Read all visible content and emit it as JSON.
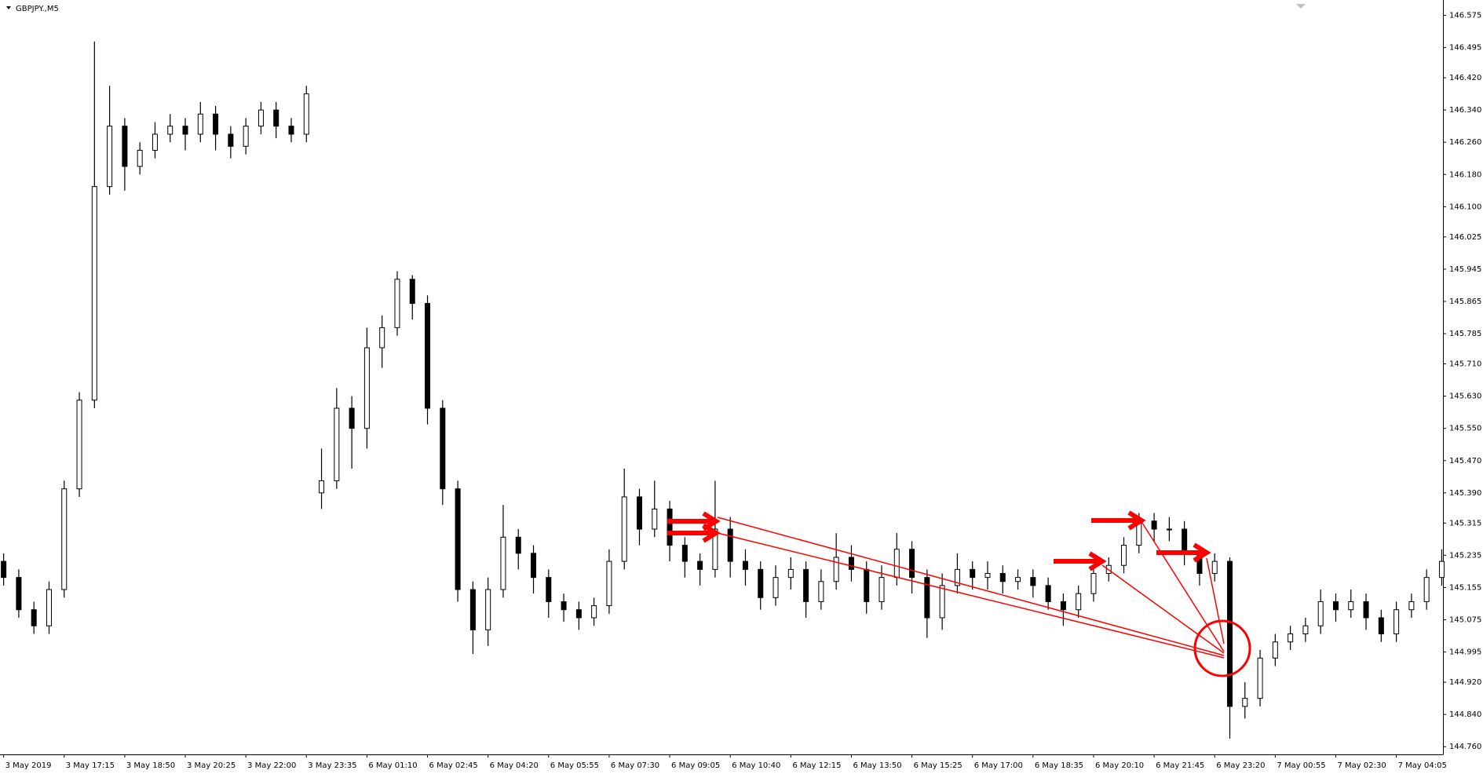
{
  "chart_data": {
    "type": "candlestick",
    "title": "GBPJPY.,M5",
    "xlim": [
      -0.06,
      23.77
    ],
    "xticks": [
      {
        "value": 0,
        "label": "3 May 2019"
      },
      {
        "value": 1,
        "label": "3 May 17:15"
      },
      {
        "value": 2,
        "label": "3 May 18:50"
      },
      {
        "value": 3,
        "label": "3 May 20:25"
      },
      {
        "value": 4,
        "label": "3 May 22:00"
      },
      {
        "value": 5,
        "label": "3 May 23:35"
      },
      {
        "value": 6,
        "label": "6 May 01:10"
      },
      {
        "value": 7,
        "label": "6 May 02:45"
      },
      {
        "value": 8,
        "label": "6 May 04:20"
      },
      {
        "value": 9,
        "label": "6 May 05:55"
      },
      {
        "value": 10,
        "label": "6 May 07:30"
      },
      {
        "value": 11,
        "label": "6 May 09:05"
      },
      {
        "value": 12,
        "label": "6 May 10:40"
      },
      {
        "value": 13,
        "label": "6 May 12:15"
      },
      {
        "value": 14,
        "label": "6 May 13:50"
      },
      {
        "value": 15,
        "label": "6 May 15:25"
      },
      {
        "value": 16,
        "label": "6 May 17:00"
      },
      {
        "value": 17,
        "label": "6 May 18:35"
      },
      {
        "value": 18,
        "label": "6 May 20:10"
      },
      {
        "value": 19,
        "label": "6 May 21:45"
      },
      {
        "value": 20,
        "label": "6 May 23:20"
      },
      {
        "value": 21,
        "label": "7 May 00:55"
      },
      {
        "value": 22,
        "label": "7 May 02:30"
      },
      {
        "value": 23,
        "label": "7 May 04:05"
      }
    ],
    "ylim": [
      144.741,
      146.613
    ],
    "yticks": [
      146.575,
      146.495,
      {
        "value": 146.42,
        "label": "146.420"
      },
      {
        "value": 146.34,
        "label": "146.340"
      },
      {
        "value": 146.26,
        "label": "146.260"
      },
      {
        "value": 146.18,
        "label": "146.180"
      },
      {
        "value": 146.1,
        "label": "146.100"
      },
      146.025,
      145.945,
      145.865,
      145.785,
      {
        "value": 145.71,
        "label": "145.710"
      },
      {
        "value": 145.63,
        "label": "145.630"
      },
      {
        "value": 145.55,
        "label": "145.550"
      },
      {
        "value": 145.47,
        "label": "145.470"
      },
      {
        "value": 145.39,
        "label": "145.390"
      },
      145.315,
      145.235,
      145.155,
      145.075,
      144.995,
      {
        "value": 144.92,
        "label": "144.920"
      },
      {
        "value": 144.84,
        "label": "144.840"
      },
      {
        "value": 144.76,
        "label": "144.760"
      }
    ],
    "color": "#000000",
    "candles": {
      "x": [
        0,
        0.25,
        0.5,
        0.75,
        1,
        1.25,
        1.5,
        1.75,
        2,
        2.25,
        2.5,
        2.75,
        3,
        3.25,
        3.5,
        3.75,
        4,
        4.25,
        4.5,
        4.75,
        5,
        5.25,
        5.5,
        5.75,
        6,
        6.25,
        6.5,
        6.75,
        7,
        7.25,
        7.5,
        7.75,
        8,
        8.25,
        8.5,
        8.75,
        9,
        9.25,
        9.5,
        9.75,
        10,
        10.25,
        10.5,
        10.75,
        11,
        11.25,
        11.5,
        11.75,
        12,
        12.25,
        12.5,
        12.75,
        13,
        13.25,
        13.5,
        13.75,
        14,
        14.25,
        14.5,
        14.75,
        15,
        15.25,
        15.5,
        15.75,
        16,
        16.25,
        16.5,
        16.75,
        17,
        17.25,
        17.5,
        17.75,
        18,
        18.25,
        18.5,
        18.75,
        19,
        19.25,
        19.5,
        19.75,
        20,
        20.25,
        20.5,
        20.75,
        21,
        21.25,
        21.5,
        21.75,
        22,
        22.25,
        22.5,
        22.75,
        23,
        23.25,
        23.5,
        23.75
      ],
      "open": [
        145.22,
        145.18,
        145.1,
        145.06,
        145.15,
        145.4,
        145.62,
        146.15,
        146.3,
        146.2,
        146.24,
        146.28,
        146.3,
        146.28,
        146.33,
        146.28,
        146.25,
        146.3,
        146.34,
        146.3,
        146.28,
        145.39,
        145.42,
        145.6,
        145.55,
        145.75,
        145.8,
        145.92,
        145.86,
        145.6,
        145.4,
        145.15,
        145.05,
        145.15,
        145.28,
        145.24,
        145.18,
        145.12,
        145.1,
        145.08,
        145.11,
        145.22,
        145.38,
        145.3,
        145.35,
        145.26,
        145.22,
        145.2,
        145.3,
        145.22,
        145.2,
        145.13,
        145.18,
        145.2,
        145.12,
        145.17,
        145.23,
        145.2,
        145.12,
        145.18,
        145.25,
        145.18,
        145.08,
        145.16,
        145.2,
        145.18,
        145.19,
        145.17,
        145.18,
        145.16,
        145.12,
        145.1,
        145.14,
        145.19,
        145.21,
        145.26,
        145.32,
        145.3,
        145.3,
        145.24,
        145.19,
        145.22,
        144.86,
        144.88,
        144.98,
        145.02,
        145.04,
        145.06,
        145.12,
        145.1,
        145.12,
        145.08,
        145.04,
        145.1,
        145.12,
        145.18
      ],
      "high": [
        145.24,
        145.2,
        145.12,
        145.17,
        145.42,
        145.64,
        146.51,
        146.4,
        146.32,
        146.26,
        146.31,
        146.33,
        146.32,
        146.36,
        146.35,
        146.3,
        146.32,
        146.36,
        146.36,
        146.32,
        146.4,
        145.5,
        145.65,
        145.63,
        145.8,
        145.83,
        145.94,
        145.93,
        145.88,
        145.62,
        145.42,
        145.17,
        145.18,
        145.36,
        145.3,
        145.26,
        145.2,
        145.14,
        145.12,
        145.13,
        145.25,
        145.45,
        145.4,
        145.42,
        145.37,
        145.28,
        145.24,
        145.42,
        145.33,
        145.25,
        145.22,
        145.21,
        145.23,
        145.22,
        145.2,
        145.29,
        145.26,
        145.22,
        145.21,
        145.29,
        145.27,
        145.2,
        145.19,
        145.24,
        145.22,
        145.22,
        145.21,
        145.2,
        145.2,
        145.18,
        145.14,
        145.16,
        145.21,
        145.23,
        145.28,
        145.34,
        145.34,
        145.33,
        145.32,
        145.26,
        145.24,
        145.23,
        144.92,
        145,
        145.04,
        145.06,
        145.08,
        145.15,
        145.14,
        145.15,
        145.14,
        145.1,
        145.12,
        145.14,
        145.2,
        145.25
      ],
      "low": [
        145.16,
        145.08,
        145.04,
        145.04,
        145.13,
        145.38,
        145.6,
        146.13,
        146.14,
        146.18,
        146.22,
        146.26,
        146.24,
        146.26,
        146.24,
        146.22,
        146.23,
        146.28,
        146.27,
        146.26,
        146.26,
        145.35,
        145.4,
        145.45,
        145.5,
        145.7,
        145.78,
        145.82,
        145.56,
        145.36,
        145.12,
        144.99,
        145.01,
        145.13,
        145.2,
        145.14,
        145.08,
        145.07,
        145.05,
        145.06,
        145.09,
        145.2,
        145.26,
        145.28,
        145.22,
        145.18,
        145.16,
        145.18,
        145.18,
        145.16,
        145.1,
        145.11,
        145.15,
        145.08,
        145.1,
        145.15,
        145.17,
        145.09,
        145.1,
        145.16,
        145.14,
        145.03,
        145.05,
        145.14,
        145.15,
        145.15,
        145.14,
        145.15,
        145.13,
        145.1,
        145.06,
        145.08,
        145.12,
        145.17,
        145.19,
        145.24,
        145.27,
        145.27,
        145.21,
        145.16,
        145.17,
        144.78,
        144.83,
        144.86,
        144.96,
        145,
        145.02,
        145.04,
        145.07,
        145.08,
        145.05,
        145.02,
        145.02,
        145.08,
        145.1,
        145.16
      ],
      "close": [
        145.18,
        145.1,
        145.06,
        145.15,
        145.4,
        145.62,
        146.15,
        146.3,
        146.2,
        146.24,
        146.28,
        146.3,
        146.28,
        146.33,
        146.28,
        146.25,
        146.3,
        146.34,
        146.3,
        146.28,
        146.38,
        145.42,
        145.6,
        145.55,
        145.75,
        145.8,
        145.92,
        145.86,
        145.6,
        145.4,
        145.15,
        145.05,
        145.15,
        145.28,
        145.24,
        145.18,
        145.12,
        145.1,
        145.08,
        145.11,
        145.22,
        145.38,
        145.3,
        145.35,
        145.26,
        145.22,
        145.2,
        145.3,
        145.22,
        145.2,
        145.13,
        145.18,
        145.2,
        145.12,
        145.17,
        145.23,
        145.2,
        145.12,
        145.18,
        145.25,
        145.18,
        145.08,
        145.16,
        145.2,
        145.18,
        145.19,
        145.17,
        145.18,
        145.16,
        145.12,
        145.1,
        145.14,
        145.19,
        145.21,
        145.26,
        145.32,
        145.3,
        145.3,
        145.24,
        145.19,
        145.22,
        144.86,
        144.88,
        144.98,
        145.02,
        145.04,
        145.06,
        145.12,
        145.1,
        145.12,
        145.08,
        145.04,
        145.1,
        145.12,
        145.18,
        145.22
      ]
    }
  }
}
